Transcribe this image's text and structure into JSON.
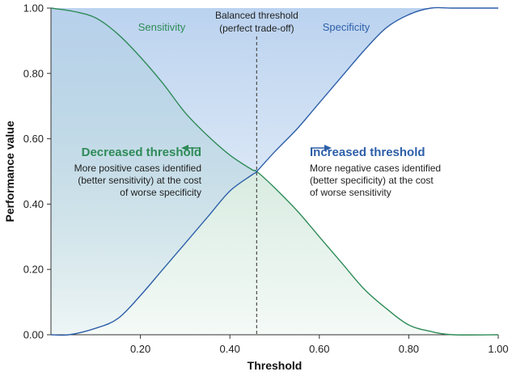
{
  "chart_data": {
    "type": "line",
    "xlabel": "Threshold",
    "ylabel": "Performance value",
    "xlim": [
      0,
      1
    ],
    "ylim": [
      0,
      1
    ],
    "x_ticks": [
      "0.20",
      "0.40",
      "0.60",
      "0.80",
      "1.00"
    ],
    "y_ticks": [
      "0.00",
      "0.20",
      "0.40",
      "0.60",
      "0.80",
      "1.00"
    ],
    "grid": false,
    "series": [
      {
        "name": "Sensitivity",
        "color": "#2e8b57",
        "fill": "#cfe8dc",
        "x": [
          0.0,
          0.05,
          0.1,
          0.15,
          0.2,
          0.25,
          0.3,
          0.35,
          0.4,
          0.45,
          0.46,
          0.5,
          0.55,
          0.6,
          0.65,
          0.7,
          0.75,
          0.8,
          0.85,
          0.9,
          1.0
        ],
        "values": [
          1.0,
          0.99,
          0.97,
          0.92,
          0.85,
          0.77,
          0.68,
          0.61,
          0.55,
          0.505,
          0.5,
          0.45,
          0.38,
          0.3,
          0.22,
          0.14,
          0.08,
          0.03,
          0.01,
          0.0,
          0.0
        ]
      },
      {
        "name": "Specificity",
        "color": "#2d5fa8",
        "fill": "#c9dcf2",
        "x": [
          0.0,
          0.04,
          0.1,
          0.15,
          0.2,
          0.25,
          0.3,
          0.35,
          0.4,
          0.45,
          0.46,
          0.5,
          0.55,
          0.6,
          0.65,
          0.7,
          0.75,
          0.8,
          0.85,
          0.9,
          1.0
        ],
        "values": [
          0.0,
          0.0,
          0.02,
          0.05,
          0.12,
          0.2,
          0.28,
          0.36,
          0.44,
          0.49,
          0.5,
          0.56,
          0.63,
          0.71,
          0.79,
          0.87,
          0.94,
          0.98,
          1.0,
          1.0,
          1.0
        ]
      }
    ],
    "balanced_threshold": {
      "x": 0.46,
      "label_line1": "Balanced threshold",
      "label_line2": "(perfect trade-off)"
    },
    "annotations": {
      "decreased": {
        "title": "Decreased threshold",
        "lines": [
          "More positive cases identified",
          "(better sensitivity) at the cost",
          "of worse specificity"
        ],
        "arrow": "left",
        "color": "#2e8b57"
      },
      "increased": {
        "title": "Increased threshold",
        "lines": [
          "More negative cases identified",
          "(better specificity) at the cost",
          "of worse sensitivity"
        ],
        "arrow": "right",
        "color": "#2d5fa8"
      }
    }
  }
}
